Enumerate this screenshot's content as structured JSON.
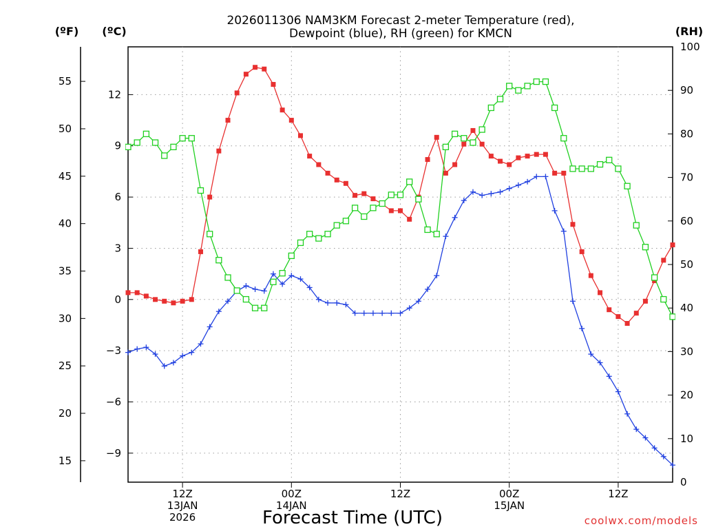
{
  "chart_data": {
    "type": "line",
    "title_lines": [
      "2026011306 NAM3KM Forecast 2-meter Temperature (red),",
      "Dewpoint (blue), RH (green) for KMCN"
    ],
    "xlabel": "Forecast Time (UTC)",
    "units": {
      "fahrenheit": "(ºF)",
      "celsius": "(ºC)",
      "rh": "(RH)"
    },
    "credit": "coolwx.com/models",
    "x_hours_range": [
      6,
      66
    ],
    "celsius_range": [
      -10.7,
      14.8
    ],
    "rh_range": [
      0,
      100
    ],
    "fahrenheit_ticks": [
      {
        "label": "55",
        "value": 55
      },
      {
        "label": "50",
        "value": 50
      },
      {
        "label": "45",
        "value": 45
      },
      {
        "label": "40",
        "value": 40
      },
      {
        "label": "35",
        "value": 35
      },
      {
        "label": "30",
        "value": 30
      },
      {
        "label": "25",
        "value": 25
      },
      {
        "label": "20",
        "value": 20
      },
      {
        "label": "15",
        "value": 15
      }
    ],
    "celsius_ticks": [
      {
        "label": "12",
        "value": 12
      },
      {
        "label": "9",
        "value": 9
      },
      {
        "label": "6",
        "value": 6
      },
      {
        "label": "3",
        "value": 3
      },
      {
        "label": "0",
        "value": 0
      },
      {
        "label": "−3",
        "value": -3
      },
      {
        "label": "−6",
        "value": -6
      },
      {
        "label": "−9",
        "value": -9
      }
    ],
    "rh_ticks": [
      {
        "label": "100",
        "value": 100
      },
      {
        "label": "90",
        "value": 90
      },
      {
        "label": "80",
        "value": 80
      },
      {
        "label": "70",
        "value": 70
      },
      {
        "label": "60",
        "value": 60
      },
      {
        "label": "50",
        "value": 50
      },
      {
        "label": "40",
        "value": 40
      },
      {
        "label": "30",
        "value": 30
      },
      {
        "label": "20",
        "value": 20
      },
      {
        "label": "10",
        "value": 10
      },
      {
        "label": "0",
        "value": 0
      }
    ],
    "x_ticks": [
      {
        "hour": 12,
        "lines": [
          "12Z",
          "13JAN",
          "2026"
        ]
      },
      {
        "hour": 24,
        "lines": [
          "00Z",
          "14JAN"
        ]
      },
      {
        "hour": 36,
        "lines": [
          "12Z"
        ]
      },
      {
        "hour": 48,
        "lines": [
          "00Z",
          "15JAN"
        ]
      },
      {
        "hour": 60,
        "lines": [
          "12Z"
        ]
      }
    ],
    "series": [
      {
        "name": "Temperature",
        "unit": "C",
        "color": "#e83030",
        "marker": "filled-square",
        "x": [
          6,
          7,
          8,
          9,
          10,
          11,
          12,
          13,
          14,
          15,
          16,
          17,
          18,
          19,
          20,
          21,
          22,
          23,
          24,
          25,
          26,
          27,
          28,
          29,
          30,
          31,
          32,
          33,
          34,
          35,
          36,
          37,
          38,
          39,
          40,
          41,
          42,
          43,
          44,
          45,
          46,
          47,
          48,
          49,
          50,
          51,
          52,
          53,
          54,
          55,
          56,
          57,
          58,
          59,
          60,
          61,
          62,
          63,
          64,
          65,
          66
        ],
        "values": [
          0.4,
          0.4,
          0.2,
          0.0,
          -0.1,
          -0.2,
          -0.1,
          0.0,
          2.8,
          6.0,
          8.7,
          10.5,
          12.1,
          13.2,
          13.6,
          13.5,
          12.6,
          11.1,
          10.5,
          9.6,
          8.4,
          7.9,
          7.4,
          7.0,
          6.8,
          6.1,
          6.2,
          5.9,
          5.6,
          5.2,
          5.2,
          4.7,
          6.0,
          8.2,
          9.5,
          7.4,
          7.9,
          9.1,
          9.9,
          9.1,
          8.4,
          8.1,
          7.9,
          8.3,
          8.4,
          8.5,
          8.5,
          7.4,
          7.4,
          4.4,
          2.8,
          1.4,
          0.4,
          -0.6,
          -1.0,
          -1.4,
          -0.8,
          -0.1,
          1.1,
          2.3,
          3.2
        ]
      },
      {
        "name": "Dewpoint",
        "unit": "C",
        "color": "#2040e0",
        "marker": "plus",
        "x": [
          6,
          7,
          8,
          9,
          10,
          11,
          12,
          13,
          14,
          15,
          16,
          17,
          18,
          19,
          20,
          21,
          22,
          23,
          24,
          25,
          26,
          27,
          28,
          29,
          30,
          31,
          32,
          33,
          34,
          35,
          36,
          37,
          38,
          39,
          40,
          41,
          42,
          43,
          44,
          45,
          46,
          47,
          48,
          49,
          50,
          51,
          52,
          53,
          54,
          55,
          56,
          57,
          58,
          59,
          60,
          61,
          62,
          63,
          64,
          65,
          66
        ],
        "values": [
          -3.1,
          -2.9,
          -2.8,
          -3.2,
          -3.9,
          -3.7,
          -3.3,
          -3.1,
          -2.6,
          -1.6,
          -0.7,
          -0.1,
          0.5,
          0.8,
          0.6,
          0.5,
          1.5,
          0.9,
          1.4,
          1.2,
          0.7,
          0.0,
          -0.2,
          -0.2,
          -0.3,
          -0.8,
          -0.8,
          -0.8,
          -0.8,
          -0.8,
          -0.8,
          -0.5,
          -0.1,
          0.6,
          1.4,
          3.7,
          4.8,
          5.8,
          6.3,
          6.1,
          6.2,
          6.3,
          6.5,
          6.7,
          6.9,
          7.2,
          7.2,
          5.2,
          4.0,
          -0.1,
          -1.7,
          -3.2,
          -3.7,
          -4.5,
          -5.4,
          -6.7,
          -7.6,
          -8.1,
          -8.7,
          -9.2,
          -9.7
        ]
      },
      {
        "name": "Relative Humidity",
        "unit": "RH",
        "color": "#20d020",
        "marker": "open-square",
        "x": [
          6,
          7,
          8,
          9,
          10,
          11,
          12,
          13,
          14,
          15,
          16,
          17,
          18,
          19,
          20,
          21,
          22,
          23,
          24,
          25,
          26,
          27,
          28,
          29,
          30,
          31,
          32,
          33,
          34,
          35,
          36,
          37,
          38,
          39,
          40,
          41,
          42,
          43,
          44,
          45,
          46,
          47,
          48,
          49,
          50,
          51,
          52,
          53,
          54,
          55,
          56,
          57,
          58,
          59,
          60,
          61,
          62,
          63,
          64,
          65,
          66
        ],
        "values": [
          77,
          78,
          80,
          78,
          75,
          77,
          79,
          79,
          67,
          57,
          51,
          47,
          44,
          42,
          40,
          40,
          46,
          48,
          52,
          55,
          57,
          56,
          57,
          59,
          60,
          63,
          61,
          63,
          64,
          66,
          66,
          69,
          65,
          58,
          57,
          77,
          80,
          79,
          78,
          81,
          86,
          88,
          91,
          90,
          91,
          92,
          92,
          86,
          79,
          72,
          72,
          72,
          73,
          74,
          72,
          68,
          59,
          54,
          47,
          42,
          38
        ]
      }
    ]
  }
}
